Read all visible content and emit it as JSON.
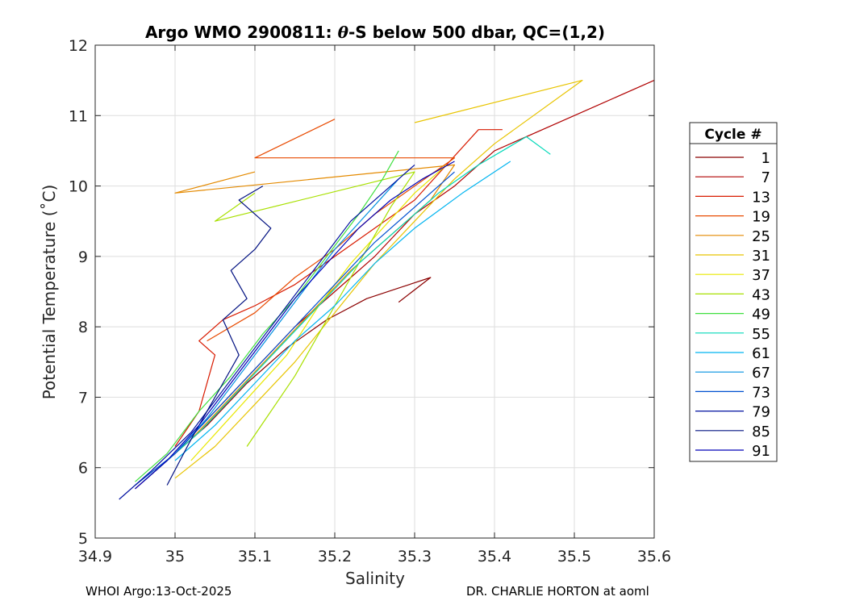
{
  "chart_data": {
    "type": "line",
    "title_prefix": "Argo WMO 2900811: ",
    "title_theta": "θ",
    "title_suffix": "-S below 500 dbar,  QC=(1,2)",
    "xlabel": "Salinity",
    "ylabel": "Potential Temperature (˚C)",
    "xlim": [
      34.9,
      35.6
    ],
    "ylim": [
      5,
      12
    ],
    "xticks": [
      "34.9",
      "35",
      "35.1",
      "35.2",
      "35.3",
      "35.4",
      "35.5",
      "35.6"
    ],
    "yticks": [
      "5",
      "6",
      "7",
      "8",
      "9",
      "10",
      "11",
      "12"
    ],
    "grid": true,
    "legend": {
      "title": "Cycle #",
      "placement": "right",
      "entries": [
        {
          "label": "1",
          "color": "#8b0000"
        },
        {
          "label": "7",
          "color": "#b00000"
        },
        {
          "label": "13",
          "color": "#d81a00"
        },
        {
          "label": "19",
          "color": "#e84a00"
        },
        {
          "label": "25",
          "color": "#e48a00"
        },
        {
          "label": "31",
          "color": "#e8c400"
        },
        {
          "label": "37",
          "color": "#e8e800"
        },
        {
          "label": "43",
          "color": "#a8e000"
        },
        {
          "label": "49",
          "color": "#40e040"
        },
        {
          "label": "55",
          "color": "#00d8b8"
        },
        {
          "label": "61",
          "color": "#00b4f0"
        },
        {
          "label": "67",
          "color": "#0090e0"
        },
        {
          "label": "73",
          "color": "#0050d0"
        },
        {
          "label": "79",
          "color": "#0010a0"
        },
        {
          "label": "85",
          "color": "#001080"
        },
        {
          "label": "91",
          "color": "#0000b8"
        }
      ]
    },
    "series": [
      {
        "name": "1",
        "color": "#8b0000",
        "x": [
          34.95,
          34.99,
          35.04,
          35.09,
          35.14,
          35.19,
          35.24,
          35.28,
          35.32,
          35.28
        ],
        "y": [
          5.7,
          6.1,
          6.6,
          7.2,
          7.7,
          8.1,
          8.4,
          8.55,
          8.7,
          8.35
        ]
      },
      {
        "name": "7",
        "color": "#b00000",
        "x": [
          34.96,
          35.0,
          35.05,
          35.1,
          35.15,
          35.2,
          35.25,
          35.3,
          35.35,
          35.4,
          35.6
        ],
        "y": [
          5.8,
          6.2,
          6.8,
          7.4,
          8.0,
          8.5,
          9.0,
          9.6,
          10.0,
          10.5,
          11.5
        ]
      },
      {
        "name": "13",
        "color": "#d81a00",
        "x": [
          35.0,
          35.03,
          35.05,
          35.03,
          35.06,
          35.1,
          35.15,
          35.2,
          35.25,
          35.3,
          35.38,
          35.41
        ],
        "y": [
          6.3,
          6.8,
          7.6,
          7.8,
          8.1,
          8.3,
          8.6,
          9.0,
          9.4,
          9.8,
          10.8,
          10.8
        ]
      },
      {
        "name": "19",
        "color": "#e84a00",
        "x": [
          35.04,
          35.1,
          35.15,
          35.2,
          35.25,
          35.3,
          35.35,
          35.1,
          35.2
        ],
        "y": [
          7.8,
          8.2,
          8.7,
          9.1,
          9.6,
          10.0,
          10.4,
          10.4,
          10.95
        ]
      },
      {
        "name": "25",
        "color": "#e48a00",
        "x": [
          34.97,
          35.02,
          35.07,
          35.12,
          35.17,
          35.22,
          35.27,
          35.32,
          35.35,
          35.0,
          35.1
        ],
        "y": [
          5.9,
          6.4,
          7.0,
          7.6,
          8.2,
          8.8,
          9.3,
          9.8,
          10.3,
          9.9,
          10.2
        ]
      },
      {
        "name": "31",
        "color": "#e8c400",
        "x": [
          35.0,
          35.05,
          35.1,
          35.15,
          35.2,
          35.25,
          35.3,
          35.35,
          35.4,
          35.51,
          35.3
        ],
        "y": [
          5.85,
          6.3,
          6.9,
          7.5,
          8.2,
          8.9,
          9.5,
          10.1,
          10.6,
          11.5,
          10.9
        ]
      },
      {
        "name": "37",
        "color": "#e8e800",
        "x": [
          35.02,
          35.06,
          35.1,
          35.14,
          35.18,
          35.22,
          35.26,
          35.3,
          35.34
        ],
        "y": [
          6.1,
          6.6,
          7.1,
          7.6,
          8.3,
          8.9,
          9.4,
          9.9,
          10.3
        ]
      },
      {
        "name": "43",
        "color": "#a8e000",
        "x": [
          35.09,
          35.12,
          35.15,
          35.18,
          35.21,
          35.24,
          35.27,
          35.3,
          35.05,
          35.1
        ],
        "y": [
          6.3,
          6.8,
          7.3,
          7.9,
          8.5,
          9.1,
          9.7,
          10.2,
          9.5,
          9.9
        ]
      },
      {
        "name": "49",
        "color": "#40e040",
        "x": [
          34.95,
          34.99,
          35.03,
          35.07,
          35.11,
          35.15,
          35.19,
          35.23,
          35.26,
          35.28
        ],
        "y": [
          5.8,
          6.2,
          6.8,
          7.3,
          7.9,
          8.4,
          9.0,
          9.6,
          10.1,
          10.5
        ]
      },
      {
        "name": "55",
        "color": "#00d8b8",
        "x": [
          34.98,
          35.03,
          35.08,
          35.13,
          35.18,
          35.23,
          35.28,
          35.33,
          35.38,
          35.44,
          35.47
        ],
        "y": [
          6.0,
          6.5,
          7.1,
          7.7,
          8.3,
          8.9,
          9.4,
          9.9,
          10.3,
          10.7,
          10.45
        ]
      },
      {
        "name": "61",
        "color": "#00b4f0",
        "x": [
          35.0,
          35.05,
          35.1,
          35.15,
          35.2,
          35.25,
          35.3,
          35.36,
          35.42
        ],
        "y": [
          6.1,
          6.6,
          7.2,
          7.8,
          8.3,
          8.9,
          9.4,
          9.9,
          10.35
        ]
      },
      {
        "name": "67",
        "color": "#0090e0",
        "x": [
          34.96,
          35.0,
          35.04,
          35.08,
          35.12,
          35.16,
          35.2,
          35.24,
          35.28
        ],
        "y": [
          5.8,
          6.2,
          6.7,
          7.3,
          7.9,
          8.5,
          9.1,
          9.6,
          10.1
        ]
      },
      {
        "name": "73",
        "color": "#0050d0",
        "x": [
          34.95,
          35.0,
          35.05,
          35.1,
          35.15,
          35.2,
          35.25,
          35.3,
          35.35
        ],
        "y": [
          5.75,
          6.2,
          6.8,
          7.4,
          8.0,
          8.6,
          9.2,
          9.7,
          10.2
        ]
      },
      {
        "name": "79",
        "color": "#0010a0",
        "x": [
          34.93,
          34.97,
          35.02,
          35.06,
          35.1,
          35.14,
          35.18,
          35.22,
          35.26,
          35.3
        ],
        "y": [
          5.55,
          5.95,
          6.5,
          7.1,
          7.7,
          8.3,
          8.9,
          9.5,
          9.9,
          10.3
        ]
      },
      {
        "name": "85",
        "color": "#001080",
        "x": [
          34.99,
          35.02,
          35.06,
          35.08,
          35.06,
          35.09,
          35.07,
          35.1,
          35.12,
          35.08,
          35.11
        ],
        "y": [
          5.75,
          6.4,
          7.2,
          7.6,
          8.1,
          8.4,
          8.8,
          9.1,
          9.4,
          9.8,
          10.0
        ]
      },
      {
        "name": "91",
        "color": "#0000b8",
        "x": [
          34.95,
          34.99,
          35.03,
          35.07,
          35.11,
          35.15,
          35.19,
          35.23,
          35.27,
          35.31,
          35.35
        ],
        "y": [
          5.7,
          6.1,
          6.6,
          7.2,
          7.8,
          8.4,
          8.9,
          9.4,
          9.8,
          10.1,
          10.35
        ]
      }
    ]
  },
  "footer": {
    "left": "WHOI Argo:13-Oct-2025",
    "right": "DR. CHARLIE HORTON at aoml"
  }
}
